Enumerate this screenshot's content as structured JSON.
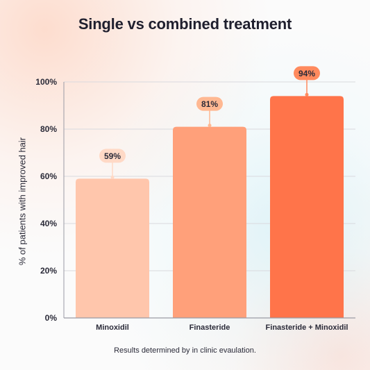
{
  "chart_data": {
    "type": "bar",
    "title": "Single vs combined treatment",
    "ylabel": "% of patients with improved hair",
    "xlabel": "",
    "footnote": "Results determined by in clinic evaulation.",
    "categories": [
      "Minoxidil",
      "Finasteride",
      "Finasteride + Minoxidil"
    ],
    "values": [
      59,
      81,
      94
    ],
    "value_labels": [
      "59%",
      "81%",
      "94%"
    ],
    "ylim": [
      0,
      100
    ],
    "yticks": [
      0,
      20,
      40,
      60,
      80,
      100
    ],
    "ytick_labels": [
      "0%",
      "20%",
      "40%",
      "60%",
      "80%",
      "100%"
    ],
    "grid": true,
    "colors": {
      "bars": [
        "#ffc6ac",
        "#ffa07a",
        "#ff744a"
      ],
      "label_pills": [
        "#ffd9c6",
        "#ffb892",
        "#ff8a5e"
      ],
      "grid": "#d9d9de",
      "axis": "#9a9aa4",
      "text": "#2a2a38"
    }
  }
}
